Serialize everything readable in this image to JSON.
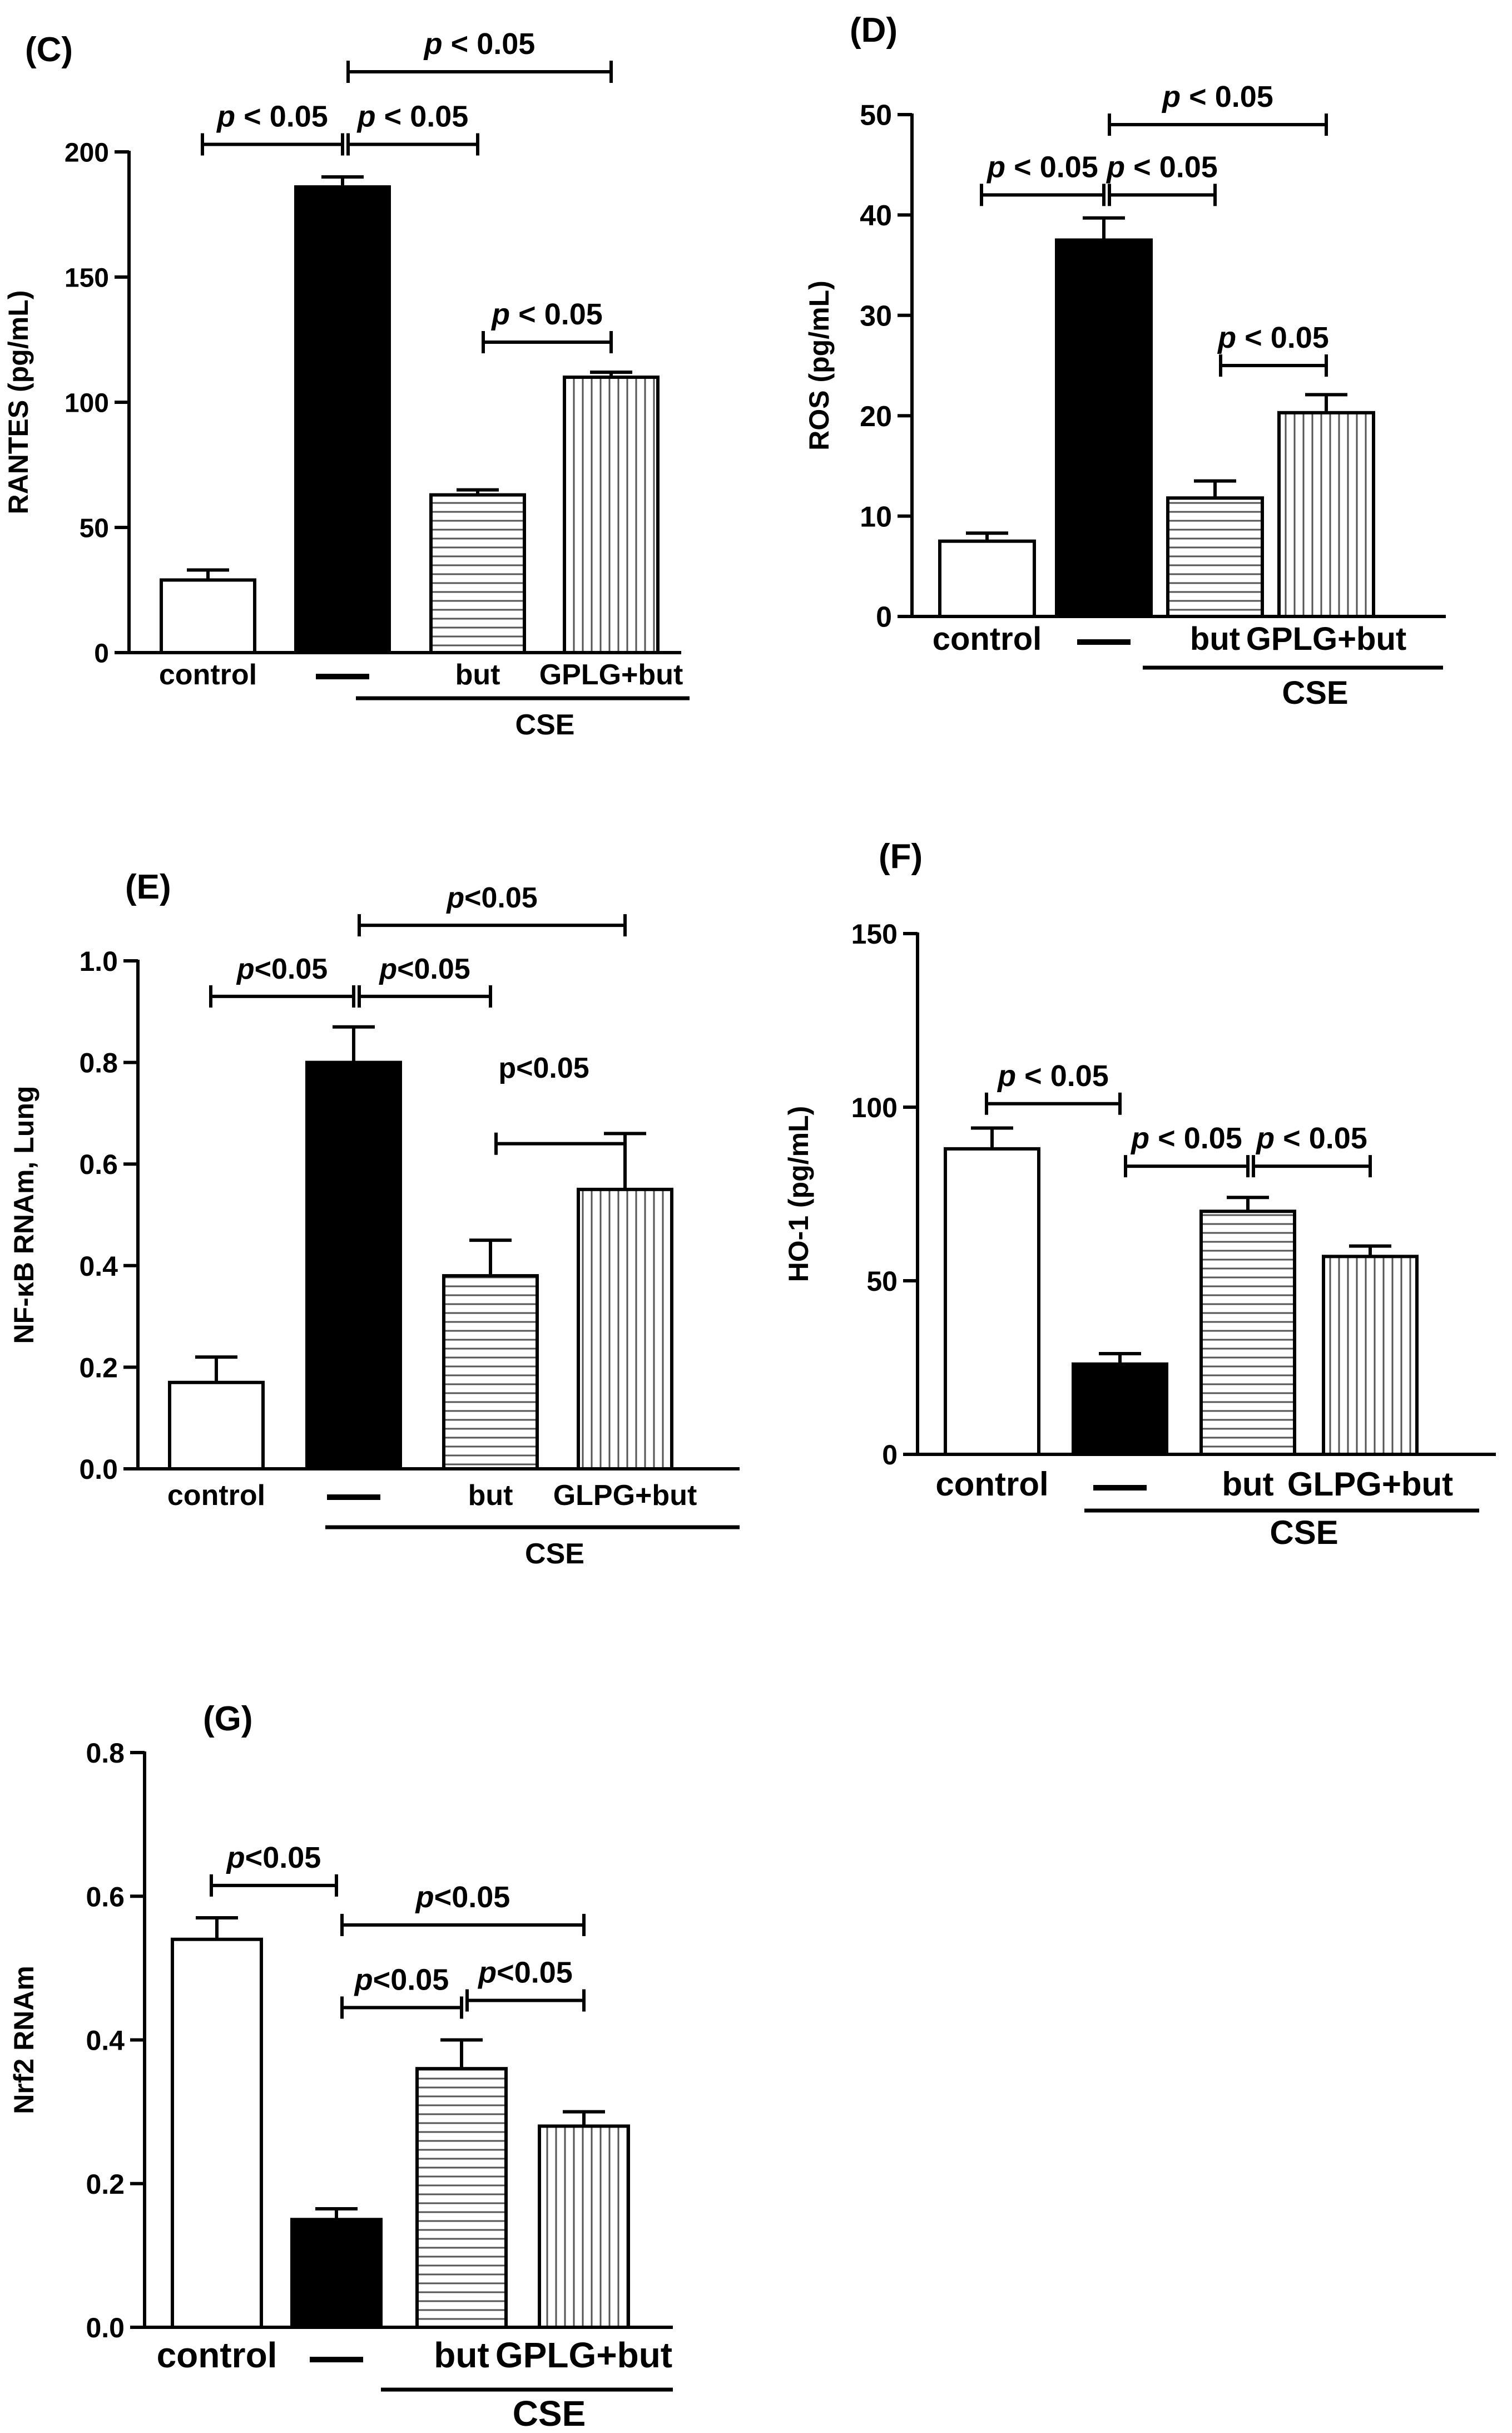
{
  "chart_data": [
    {
      "id": "C",
      "type": "bar",
      "panel_label": "(C)",
      "ylabel": "RANTES (pg/mL)",
      "ylim": [
        0,
        200
      ],
      "yticks": [
        0,
        50,
        100,
        150,
        200
      ],
      "ytick_labels": [
        "0",
        "50",
        "100",
        "150",
        "200"
      ],
      "categories": [
        "control",
        "—",
        "but",
        "GPLG+but"
      ],
      "values": [
        29,
        186,
        63,
        110
      ],
      "errors": [
        4,
        4,
        2,
        2
      ],
      "fills": [
        "open",
        "solid",
        "horizontal",
        "vertical"
      ],
      "group_label": "CSE",
      "group_span": [
        1,
        3
      ],
      "annotations": [
        {
          "text": "p < 0.05",
          "from": 0,
          "to": 1,
          "level": 203
        },
        {
          "text": "p < 0.05",
          "from": 1,
          "to": 2,
          "level": 203
        },
        {
          "text": "p < 0.05",
          "from": 1,
          "to": 3,
          "level": 232
        },
        {
          "text": "p < 0.05",
          "from": 2,
          "to": 3,
          "level": 124
        }
      ]
    },
    {
      "id": "D",
      "type": "bar",
      "panel_label": "(D)",
      "ylabel": "ROS (pg/mL)",
      "ylim": [
        0,
        50
      ],
      "yticks": [
        0,
        10,
        20,
        30,
        40,
        50
      ],
      "ytick_labels": [
        "0",
        "10",
        "20",
        "30",
        "40",
        "50"
      ],
      "categories": [
        "control",
        "—",
        "but",
        "GPLG+but"
      ],
      "values": [
        7.5,
        37.5,
        11.8,
        20.3
      ],
      "errors": [
        0.8,
        2.2,
        1.7,
        1.8
      ],
      "fills": [
        "open",
        "solid",
        "horizontal",
        "vertical"
      ],
      "group_label": "CSE",
      "group_span": [
        2,
        3
      ],
      "annotations": [
        {
          "text": "p < 0.05",
          "from": 0,
          "to": 1,
          "level": 42
        },
        {
          "text": "p < 0.05",
          "from": 1,
          "to": 2,
          "level": 42
        },
        {
          "text": "p < 0.05",
          "from": 1,
          "to": 3,
          "level": 49
        },
        {
          "text": "p < 0.05",
          "from": 2,
          "to": 3,
          "level": 25
        }
      ]
    },
    {
      "id": "E",
      "type": "bar",
      "panel_label": "(E)",
      "ylabel": "NF-κB RNAm, Lung",
      "ylim": [
        0,
        1.0
      ],
      "yticks": [
        0,
        0.2,
        0.4,
        0.6,
        0.8,
        1.0
      ],
      "ytick_labels": [
        "0.0",
        "0.2",
        "0.4",
        "0.6",
        "0.8",
        "1.0"
      ],
      "categories": [
        "control",
        "—",
        "but",
        "GLPG+but"
      ],
      "values": [
        0.17,
        0.8,
        0.38,
        0.55
      ],
      "errors": [
        0.05,
        0.07,
        0.07,
        0.11
      ],
      "fills": [
        "open",
        "solid",
        "horizontal",
        "vertical"
      ],
      "group_label": "CSE",
      "group_span": [
        1,
        3
      ],
      "annotations": [
        {
          "text": "p<0.05",
          "from": 0,
          "to": 1,
          "level": 0.93
        },
        {
          "text": "p<0.05",
          "from": 1,
          "to": 2,
          "level": 0.93
        },
        {
          "text": "p<0.05",
          "from": 1,
          "to": 3,
          "level": 1.07
        },
        {
          "text": "p<0.05",
          "from": 2,
          "to": 3,
          "level": 0.64,
          "text_level": 0.77,
          "text_plain": true
        }
      ]
    },
    {
      "id": "F",
      "type": "bar",
      "panel_label": "(F)",
      "ylabel": "HO-1 (pg/mL)",
      "ylim": [
        0,
        150
      ],
      "yticks": [
        0,
        50,
        100,
        150
      ],
      "ytick_labels": [
        "0",
        "50",
        "100",
        "150"
      ],
      "categories": [
        "control",
        "—",
        "but",
        "GLPG+but"
      ],
      "values": [
        88,
        26,
        70,
        57
      ],
      "errors": [
        6,
        3,
        4,
        3
      ],
      "fills": [
        "open",
        "solid",
        "horizontal",
        "vertical"
      ],
      "group_label": "CSE",
      "group_span": [
        1,
        3
      ],
      "annotations": [
        {
          "text": "p < 0.05",
          "from": 0,
          "to": 1,
          "level": 101
        },
        {
          "text": "p < 0.05",
          "from": 1,
          "to": 2,
          "level": 83
        },
        {
          "text": "p < 0.05",
          "from": 2,
          "to": 3,
          "level": 83
        }
      ]
    },
    {
      "id": "G",
      "type": "bar",
      "panel_label": "(G)",
      "ylabel": "Nrf2 RNAm",
      "ylim": [
        0,
        0.8
      ],
      "yticks": [
        0,
        0.2,
        0.4,
        0.6,
        0.8
      ],
      "ytick_labels": [
        "0.0",
        "0.2",
        "0.4",
        "0.6",
        "0.8"
      ],
      "categories": [
        "control",
        "—",
        "but",
        "GPLG+but"
      ],
      "values": [
        0.54,
        0.15,
        0.36,
        0.28
      ],
      "errors": [
        0.03,
        0.015,
        0.04,
        0.02
      ],
      "fills": [
        "open",
        "solid",
        "horizontal",
        "vertical"
      ],
      "group_label": "CSE",
      "group_span": [
        1,
        3
      ],
      "annotations": [
        {
          "text": "p<0.05",
          "from": 0,
          "to": 1,
          "level": 0.615
        },
        {
          "text": "p<0.05",
          "from": 1,
          "to": 3,
          "level": 0.56
        },
        {
          "text": "p<0.05",
          "from": 1,
          "to": 2,
          "level": 0.445
        },
        {
          "text": "p<0.05",
          "from": 2,
          "to": 3,
          "level": 0.455
        }
      ]
    }
  ]
}
